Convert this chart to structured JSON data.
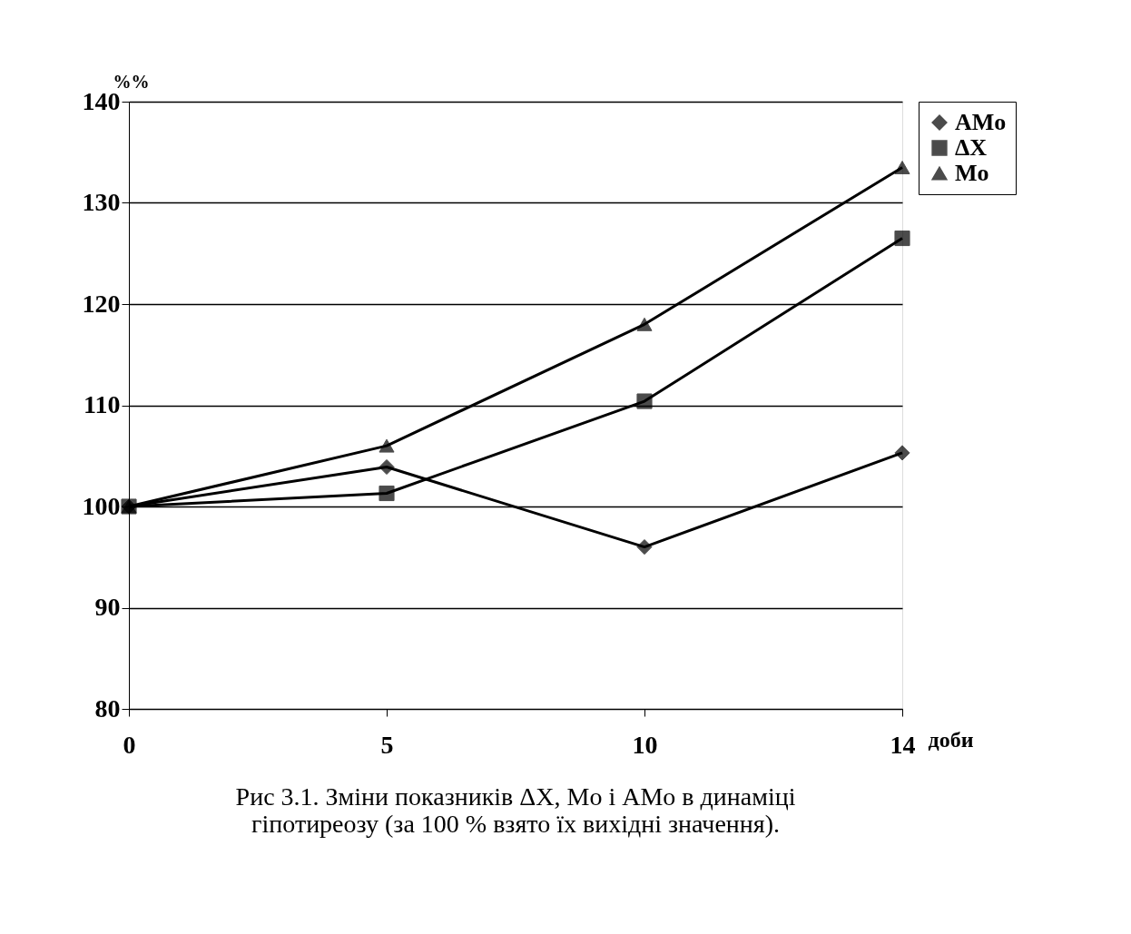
{
  "chart_data": {
    "type": "line",
    "categories": [
      "0",
      "5",
      "10",
      "14"
    ],
    "series": [
      {
        "name": "AMo",
        "color": "#000000",
        "marker": "diamond",
        "values": [
          100,
          103.9,
          96.0,
          105.3
        ]
      },
      {
        "name": "ΔX",
        "color": "#000000",
        "marker": "square",
        "values": [
          100,
          101.3,
          110.4,
          126.5
        ]
      },
      {
        "name": "Mo",
        "color": "#000000",
        "marker": "triangle",
        "values": [
          100,
          106.0,
          118.0,
          133.5
        ]
      }
    ],
    "ylim": [
      80,
      140
    ],
    "yticks": [
      80,
      90,
      100,
      110,
      120,
      130,
      140
    ],
    "grid": "y",
    "legend": "right",
    "xlabel": "доби",
    "ylabel": "%%",
    "line_style": "solid",
    "annotations": [
      "Рис 3.1. Зміни показників ΔX, Mo і AMo в динаміці\nгіпотиреозу (за 100 % взято їх вихідні значення)."
    ]
  }
}
